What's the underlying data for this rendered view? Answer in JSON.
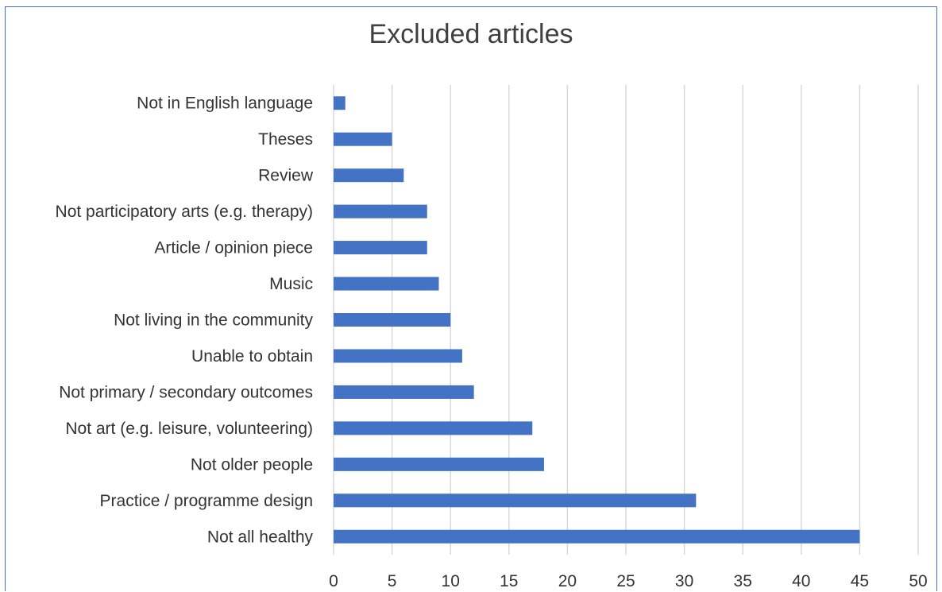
{
  "chart_data": {
    "type": "bar",
    "orientation": "horizontal",
    "title": "Excluded articles",
    "categories": [
      "Not in English language",
      "Theses",
      "Review",
      "Not participatory arts (e.g. therapy)",
      "Article / opinion piece",
      "Music",
      "Not living in the community",
      "Unable to obtain",
      "Not primary / secondary outcomes",
      "Not art (e.g. leisure, volunteering)",
      "Not older people",
      "Practice / programme design",
      "Not all healthy"
    ],
    "values": [
      1,
      5,
      6,
      8,
      8,
      9,
      10,
      11,
      12,
      17,
      18,
      31,
      45
    ],
    "xlim": [
      0,
      50
    ],
    "xticks": [
      "0",
      "5",
      "10",
      "15",
      "20",
      "25",
      "30",
      "35",
      "40",
      "45",
      "50"
    ],
    "grid": "vertical",
    "bar_color": "#4472c4",
    "grid_color": "#d9d9d9",
    "legend": "none"
  }
}
